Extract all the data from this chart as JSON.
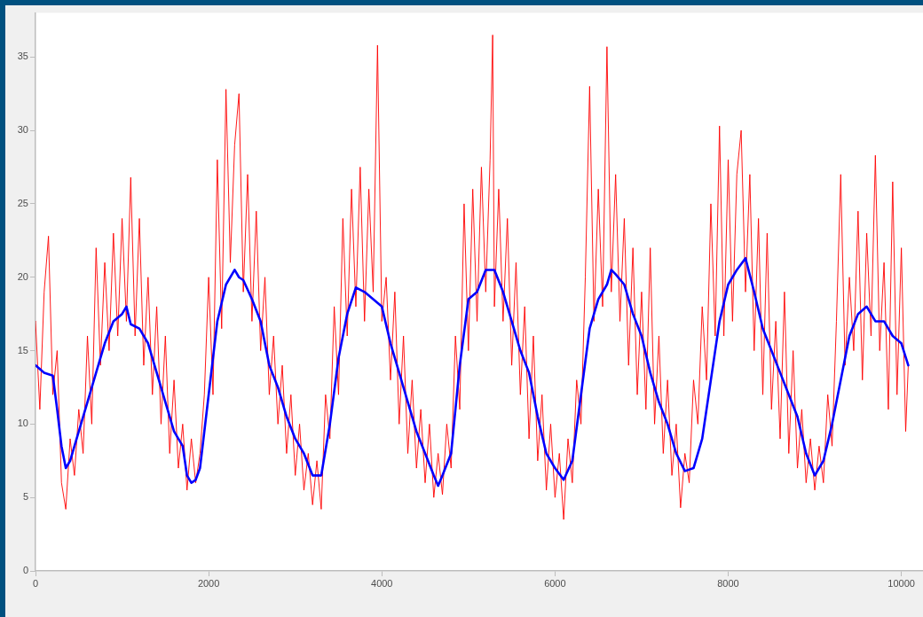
{
  "chart_data": {
    "type": "line",
    "xlim": [
      0,
      10250
    ],
    "ylim": [
      0,
      38
    ],
    "xticks": [
      0,
      2000,
      4000,
      6000,
      8000,
      10000
    ],
    "yticks": [
      0,
      5,
      10,
      15,
      20,
      25,
      30,
      35
    ],
    "grid": false,
    "line_style": "solid",
    "series": [
      {
        "color": "#ff0000",
        "x": [
          0,
          50,
          100,
          150,
          200,
          250,
          300,
          350,
          400,
          450,
          500,
          550,
          600,
          650,
          700,
          750,
          800,
          850,
          900,
          950,
          1000,
          1050,
          1100,
          1150,
          1200,
          1250,
          1300,
          1350,
          1400,
          1450,
          1500,
          1550,
          1600,
          1650,
          1700,
          1750,
          1800,
          1850,
          1900,
          1950,
          2000,
          2050,
          2100,
          2150,
          2200,
          2250,
          2300,
          2350,
          2400,
          2450,
          2500,
          2550,
          2600,
          2650,
          2700,
          2750,
          2800,
          2850,
          2900,
          2950,
          3000,
          3050,
          3100,
          3150,
          3200,
          3250,
          3300,
          3350,
          3400,
          3450,
          3500,
          3550,
          3600,
          3650,
          3700,
          3750,
          3800,
          3850,
          3900,
          3950,
          4000,
          4050,
          4100,
          4150,
          4200,
          4250,
          4300,
          4350,
          4400,
          4450,
          4500,
          4550,
          4600,
          4650,
          4700,
          4750,
          4800,
          4850,
          4900,
          4950,
          5000,
          5050,
          5100,
          5150,
          5200,
          5250,
          5280,
          5300,
          5350,
          5400,
          5450,
          5500,
          5550,
          5600,
          5650,
          5700,
          5750,
          5800,
          5850,
          5900,
          5950,
          6000,
          6050,
          6100,
          6150,
          6200,
          6250,
          6300,
          6350,
          6400,
          6450,
          6500,
          6550,
          6600,
          6650,
          6700,
          6750,
          6800,
          6850,
          6900,
          6950,
          7000,
          7050,
          7100,
          7150,
          7200,
          7250,
          7300,
          7350,
          7400,
          7450,
          7500,
          7550,
          7600,
          7650,
          7700,
          7750,
          7800,
          7850,
          7900,
          7950,
          8000,
          8050,
          8100,
          8150,
          8200,
          8250,
          8300,
          8350,
          8400,
          8450,
          8500,
          8550,
          8600,
          8650,
          8700,
          8750,
          8800,
          8850,
          8900,
          8950,
          9000,
          9050,
          9100,
          9150,
          9200,
          9250,
          9300,
          9350,
          9400,
          9450,
          9500,
          9550,
          9600,
          9650,
          9700,
          9750,
          9800,
          9850,
          9900,
          9950,
          10000,
          10050,
          10080
        ],
        "values": [
          17,
          11,
          19,
          22.8,
          12,
          15,
          6,
          4.2,
          9,
          6.5,
          11,
          8,
          16,
          10,
          22,
          14,
          21,
          15,
          23,
          16,
          24,
          17,
          26.8,
          16,
          24,
          14,
          20,
          12,
          18,
          10,
          16,
          8,
          13,
          7,
          10,
          5.5,
          9,
          6,
          8,
          12,
          20,
          12,
          28,
          16.5,
          32.8,
          21,
          29,
          32.5,
          19,
          27,
          17,
          24.5,
          15,
          20,
          12,
          16,
          10,
          14,
          8,
          12,
          6.5,
          10,
          5.5,
          8,
          4.5,
          7.5,
          4.2,
          12,
          9,
          18,
          12,
          24,
          16,
          26,
          18,
          27.5,
          17,
          26,
          19,
          35.8,
          17,
          20,
          13,
          19,
          10,
          16,
          8,
          13,
          7,
          11,
          6,
          10,
          5,
          8,
          5.2,
          10,
          7,
          16,
          11,
          25,
          15,
          26,
          17,
          27.5,
          19,
          28,
          36.5,
          18,
          26,
          17,
          24,
          14,
          21,
          12,
          18,
          9,
          16,
          7.5,
          12,
          5.5,
          10,
          5,
          8,
          3.5,
          9,
          6,
          13,
          10,
          20,
          33,
          17,
          26,
          18,
          35.7,
          19,
          27,
          17,
          24,
          14,
          22,
          12,
          19,
          11,
          22,
          10,
          16,
          8,
          13,
          6.5,
          10,
          4.3,
          8,
          6,
          13,
          10,
          18,
          13,
          25,
          16,
          30.3,
          16,
          28,
          17,
          27,
          30,
          19,
          27,
          15,
          24,
          12,
          23,
          11,
          17,
          9,
          19,
          8,
          15,
          7,
          11,
          6,
          9,
          5.5,
          8.5,
          6,
          12,
          8.5,
          17,
          27,
          14,
          20,
          15,
          24.5,
          13,
          23,
          16,
          28.3,
          15,
          21,
          11,
          26.5,
          12,
          22,
          9.5,
          14
        ]
      },
      {
        "color": "#0000ff",
        "x": [
          0,
          100,
          200,
          250,
          300,
          350,
          400,
          450,
          500,
          600,
          700,
          800,
          900,
          1000,
          1050,
          1100,
          1200,
          1300,
          1400,
          1500,
          1600,
          1700,
          1750,
          1800,
          1850,
          1900,
          2000,
          2100,
          2200,
          2300,
          2350,
          2400,
          2500,
          2600,
          2700,
          2800,
          2900,
          3000,
          3100,
          3200,
          3300,
          3400,
          3500,
          3600,
          3700,
          3800,
          3900,
          4000,
          4100,
          4200,
          4300,
          4400,
          4500,
          4600,
          4650,
          4700,
          4800,
          4900,
          5000,
          5100,
          5200,
          5300,
          5400,
          5500,
          5600,
          5700,
          5800,
          5900,
          6000,
          6100,
          6200,
          6300,
          6400,
          6500,
          6600,
          6650,
          6700,
          6800,
          6900,
          7000,
          7100,
          7200,
          7300,
          7400,
          7500,
          7600,
          7700,
          7800,
          7900,
          8000,
          8100,
          8200,
          8300,
          8400,
          8500,
          8600,
          8700,
          8800,
          8900,
          9000,
          9100,
          9200,
          9300,
          9400,
          9500,
          9600,
          9700,
          9800,
          9900,
          10000,
          10080
        ],
        "values": [
          14,
          13.5,
          13.3,
          11,
          8.5,
          7,
          7.5,
          8.5,
          9.5,
          11.5,
          13.5,
          15.5,
          17,
          17.5,
          18,
          16.8,
          16.5,
          15.5,
          13.5,
          11.5,
          9.5,
          8.5,
          6.5,
          6,
          6.2,
          7,
          12,
          17,
          19.5,
          20.5,
          20,
          19.8,
          18.5,
          17,
          14,
          12.5,
          10.5,
          9,
          8,
          6.5,
          6.5,
          10,
          14.5,
          17.5,
          19.3,
          19,
          18.5,
          18,
          15.5,
          13.5,
          11.5,
          9.5,
          8,
          6.5,
          5.8,
          6.5,
          8,
          14,
          18.5,
          19,
          20.5,
          20.5,
          19,
          17,
          15,
          13.5,
          10.5,
          8,
          7,
          6.2,
          7.5,
          12,
          16.5,
          18.5,
          19.5,
          20.5,
          20.2,
          19.5,
          17.5,
          16,
          13.5,
          11.5,
          10,
          8,
          6.8,
          7,
          9,
          13,
          17,
          19.5,
          20.5,
          21.3,
          19,
          16.5,
          15,
          13.5,
          12,
          10.5,
          8,
          6.5,
          7.5,
          10,
          13,
          16,
          17.5,
          18,
          17,
          17,
          16,
          15.5,
          14
        ]
      }
    ]
  }
}
